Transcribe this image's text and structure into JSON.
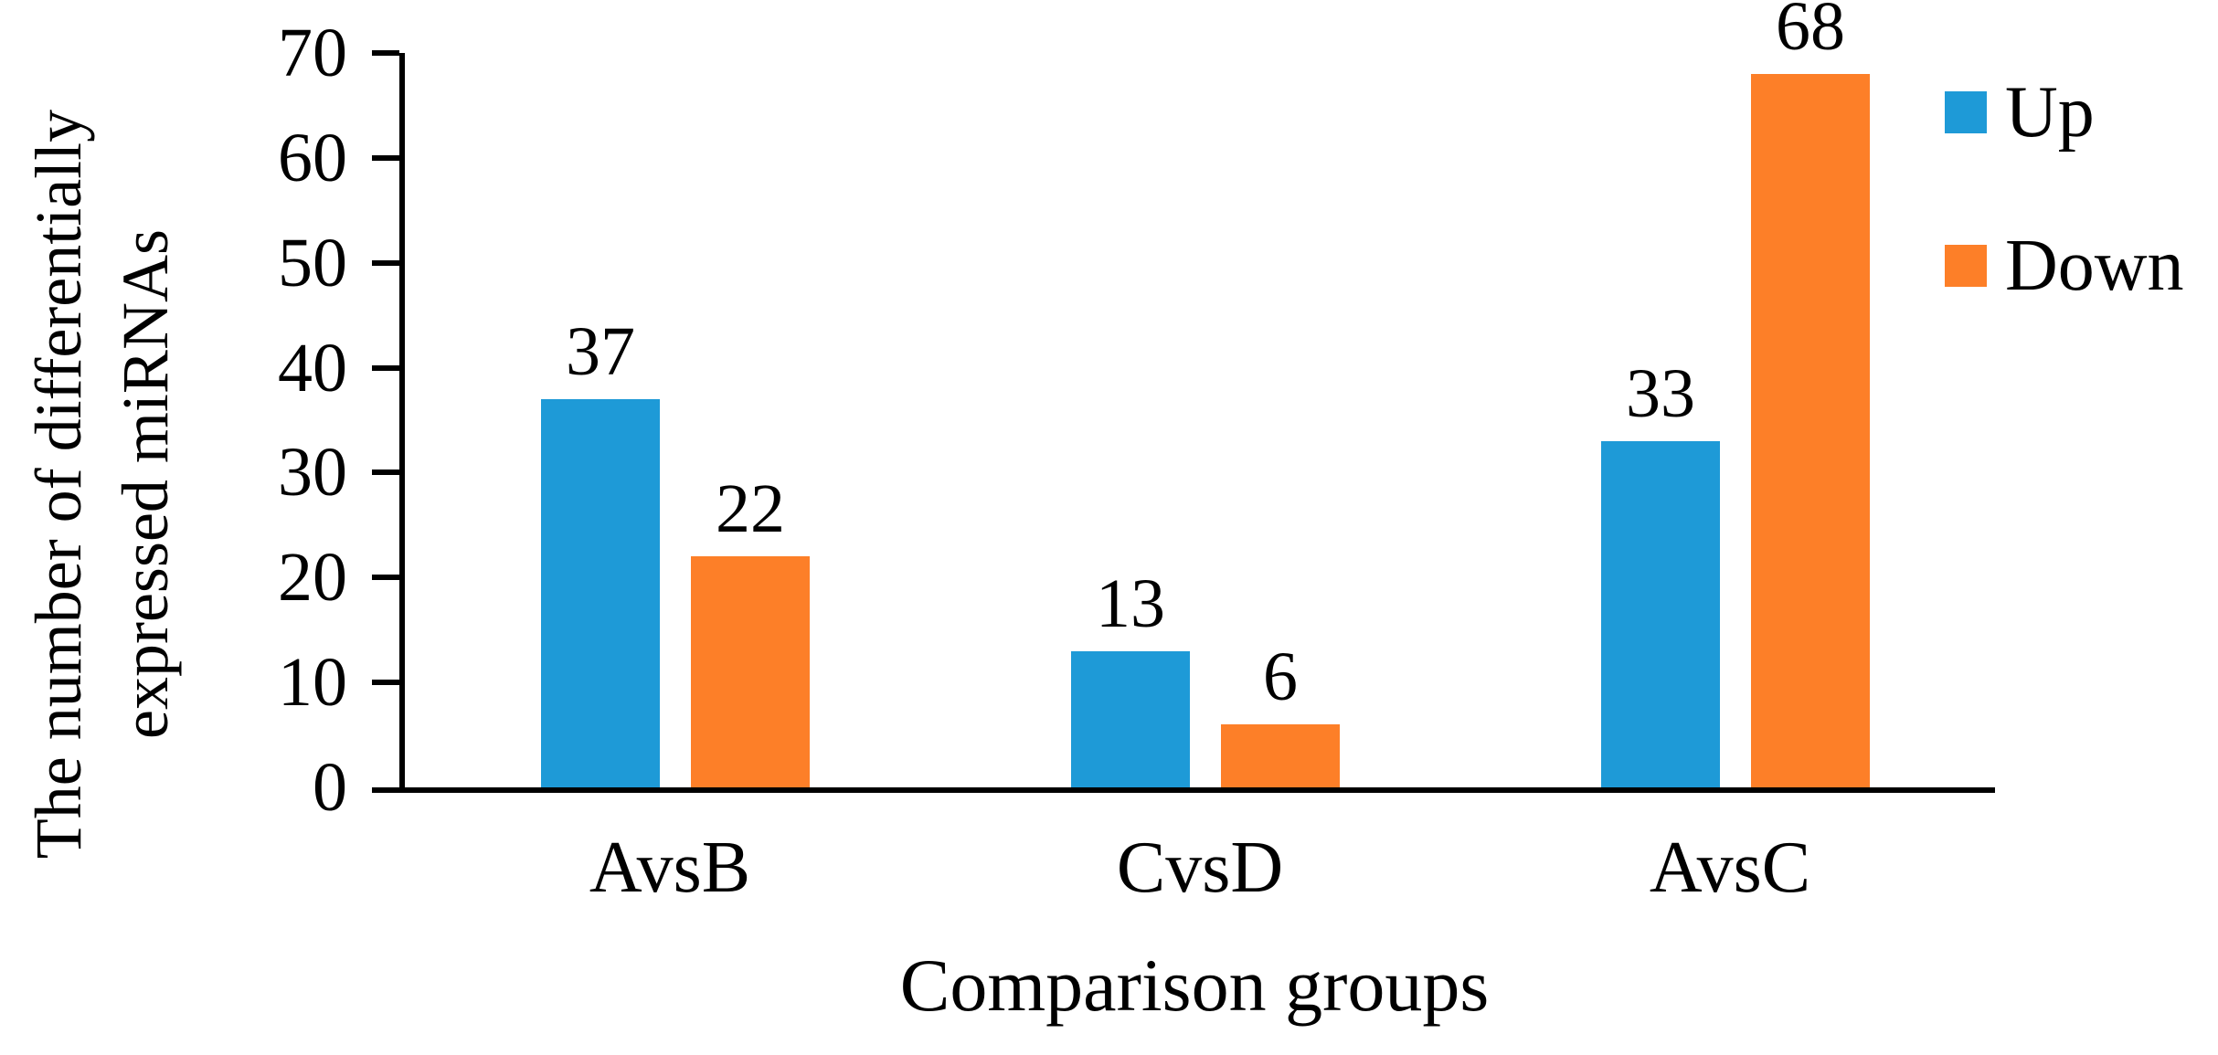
{
  "chart_data": {
    "type": "bar",
    "title": "",
    "xlabel": "Comparison groups",
    "ylabel": "The number of differentially expressed miRNAs",
    "ylabel_lines": [
      "The number of differentially",
      "expressed miRNAs"
    ],
    "categories": [
      "AvsB",
      "CvsD",
      "AvsC"
    ],
    "series": [
      {
        "name": "Up",
        "color": "#1E9AD7",
        "values": [
          37,
          13,
          33
        ]
      },
      {
        "name": "Down",
        "color": "#FD7F28",
        "values": [
          22,
          6,
          68
        ]
      }
    ],
    "bar_value_labels": [
      "37",
      "22",
      "13",
      "6",
      "33",
      "68"
    ],
    "ylim": [
      0,
      70
    ],
    "yticks": [
      0,
      10,
      20,
      30,
      40,
      50,
      60,
      70
    ],
    "grid": false,
    "legend_position": "right",
    "axis_color": "#000000",
    "background_color": "#ffffff"
  }
}
